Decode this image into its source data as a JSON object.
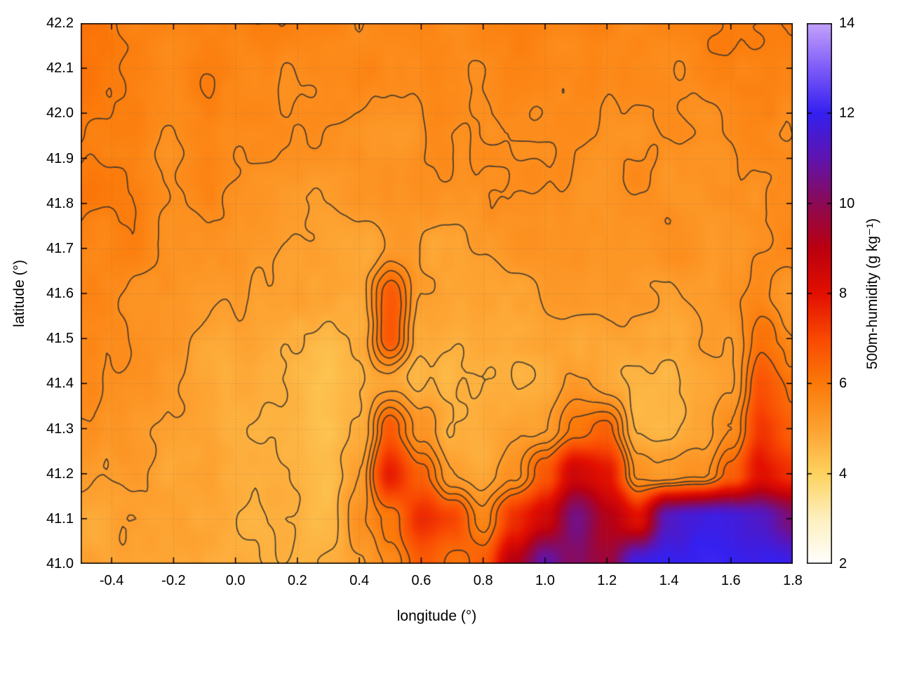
{
  "chart_data": {
    "type": "heatmap",
    "title": "",
    "xlabel": "longitude (°)",
    "ylabel": "latitude (°)",
    "xlim": [
      -0.5,
      1.8
    ],
    "ylim": [
      41.0,
      42.2
    ],
    "xticks": [
      -0.4,
      -0.2,
      0.0,
      0.2,
      0.4,
      0.6,
      0.8,
      1.0,
      1.2,
      1.4,
      1.6,
      1.8
    ],
    "yticks": [
      41.0,
      41.1,
      41.2,
      41.3,
      41.4,
      41.5,
      41.6,
      41.7,
      41.8,
      41.9,
      42.0,
      42.1,
      42.2
    ],
    "grid_dotted": true,
    "colorbar": {
      "label": "500m-humidity (g kg⁻¹)",
      "range": [
        2,
        14
      ],
      "ticks": [
        2,
        4,
        6,
        8,
        10,
        12,
        14
      ],
      "stops": [
        [
          2,
          "#ffffff"
        ],
        [
          3,
          "#fef0bf"
        ],
        [
          4,
          "#fdd35f"
        ],
        [
          5,
          "#fda231"
        ],
        [
          6,
          "#fb7a0a"
        ],
        [
          7,
          "#f94902"
        ],
        [
          8,
          "#e31000"
        ],
        [
          9,
          "#bb0010"
        ],
        [
          10,
          "#8c0a55"
        ],
        [
          11,
          "#5f14b0"
        ],
        [
          12,
          "#3520f0"
        ],
        [
          13,
          "#7e5cf8"
        ],
        [
          14,
          "#c5a3fb"
        ]
      ]
    },
    "field": {
      "units": "g/kg",
      "lon_start": -0.5,
      "lon_step": 0.1,
      "nx": 24,
      "lat_start": 42.2,
      "lat_step": -0.1,
      "ny": 13,
      "values": [
        [
          6.0,
          5.9,
          5.9,
          5.8,
          5.8,
          5.7,
          5.8,
          5.7,
          5.7,
          5.6,
          5.7,
          5.7,
          5.6,
          5.7,
          5.7,
          5.8,
          5.7,
          5.7,
          5.8,
          5.8,
          5.7,
          5.8,
          5.8,
          5.9
        ],
        [
          6.0,
          5.9,
          5.8,
          5.8,
          5.7,
          5.7,
          5.7,
          5.6,
          5.6,
          5.6,
          5.6,
          5.6,
          5.5,
          5.6,
          5.6,
          5.7,
          5.7,
          5.6,
          5.7,
          5.7,
          5.6,
          5.7,
          5.7,
          5.8
        ],
        [
          6.0,
          5.9,
          5.8,
          5.7,
          5.7,
          5.6,
          5.6,
          5.5,
          5.5,
          5.5,
          5.5,
          5.5,
          5.5,
          5.5,
          5.6,
          5.6,
          5.6,
          5.5,
          5.6,
          5.6,
          5.5,
          5.6,
          5.7,
          5.7
        ],
        [
          5.9,
          5.8,
          5.7,
          5.6,
          5.6,
          5.5,
          5.5,
          5.4,
          5.4,
          5.4,
          5.4,
          5.4,
          5.4,
          5.5,
          5.5,
          5.5,
          5.5,
          5.4,
          5.5,
          5.5,
          5.5,
          5.5,
          5.6,
          5.6
        ],
        [
          5.9,
          5.8,
          5.7,
          5.6,
          5.5,
          5.4,
          5.3,
          5.3,
          5.2,
          5.2,
          5.2,
          5.3,
          5.3,
          5.4,
          5.4,
          5.4,
          5.4,
          5.4,
          5.4,
          5.5,
          5.4,
          5.5,
          5.5,
          5.6
        ],
        [
          5.8,
          5.7,
          5.6,
          5.5,
          5.4,
          5.3,
          5.2,
          5.1,
          5.0,
          5.0,
          5.0,
          5.1,
          5.1,
          5.2,
          5.3,
          5.3,
          5.3,
          5.3,
          5.3,
          5.4,
          5.4,
          5.4,
          5.5,
          5.5
        ],
        [
          5.7,
          5.6,
          5.5,
          5.4,
          5.3,
          5.2,
          5.0,
          4.9,
          4.8,
          4.9,
          6.6,
          5.0,
          4.9,
          5.0,
          5.1,
          5.2,
          5.2,
          5.2,
          5.1,
          5.2,
          5.2,
          5.3,
          5.6,
          5.4
        ],
        [
          5.6,
          5.5,
          5.4,
          5.3,
          5.1,
          5.0,
          4.8,
          4.7,
          4.6,
          4.7,
          6.8,
          4.8,
          4.7,
          4.8,
          4.9,
          5.0,
          5.0,
          5.0,
          4.9,
          5.0,
          5.0,
          5.1,
          6.2,
          5.5
        ],
        [
          5.5,
          5.4,
          5.3,
          5.1,
          5.0,
          4.8,
          4.6,
          4.5,
          4.4,
          4.5,
          4.9,
          4.6,
          4.5,
          4.6,
          4.7,
          4.8,
          5.2,
          4.9,
          4.7,
          4.7,
          4.8,
          5.0,
          6.8,
          6.0
        ],
        [
          5.3,
          5.2,
          5.1,
          5.0,
          4.9,
          4.7,
          4.5,
          4.4,
          4.3,
          4.6,
          6.5,
          5.2,
          4.5,
          4.6,
          4.8,
          5.0,
          6.0,
          6.5,
          4.8,
          4.6,
          4.9,
          5.5,
          7.3,
          6.5
        ],
        [
          5.1,
          5.0,
          5.0,
          4.9,
          4.8,
          4.7,
          4.6,
          4.5,
          4.4,
          5.0,
          7.8,
          6.5,
          5.0,
          4.7,
          5.2,
          6.5,
          8.5,
          8.0,
          5.5,
          5.0,
          5.5,
          6.5,
          8.0,
          7.5
        ],
        [
          5.0,
          5.0,
          4.9,
          4.9,
          4.8,
          4.8,
          4.7,
          4.6,
          4.6,
          5.2,
          6.0,
          7.5,
          7.0,
          5.5,
          7.5,
          8.5,
          10.5,
          9.0,
          8.0,
          11.5,
          11.8,
          11.8,
          11.5,
          10.5
        ],
        [
          5.1,
          5.0,
          5.0,
          4.9,
          4.9,
          4.8,
          4.8,
          4.7,
          4.8,
          5.0,
          5.5,
          6.5,
          6.0,
          6.5,
          9.0,
          11.0,
          10.0,
          9.5,
          11.8,
          12.0,
          12.0,
          12.0,
          12.0,
          11.8
        ]
      ]
    },
    "contours": {
      "levels": [
        4.7,
        5.1,
        5.5,
        5.9,
        6.3
      ],
      "color": "#2f2f2f"
    }
  }
}
